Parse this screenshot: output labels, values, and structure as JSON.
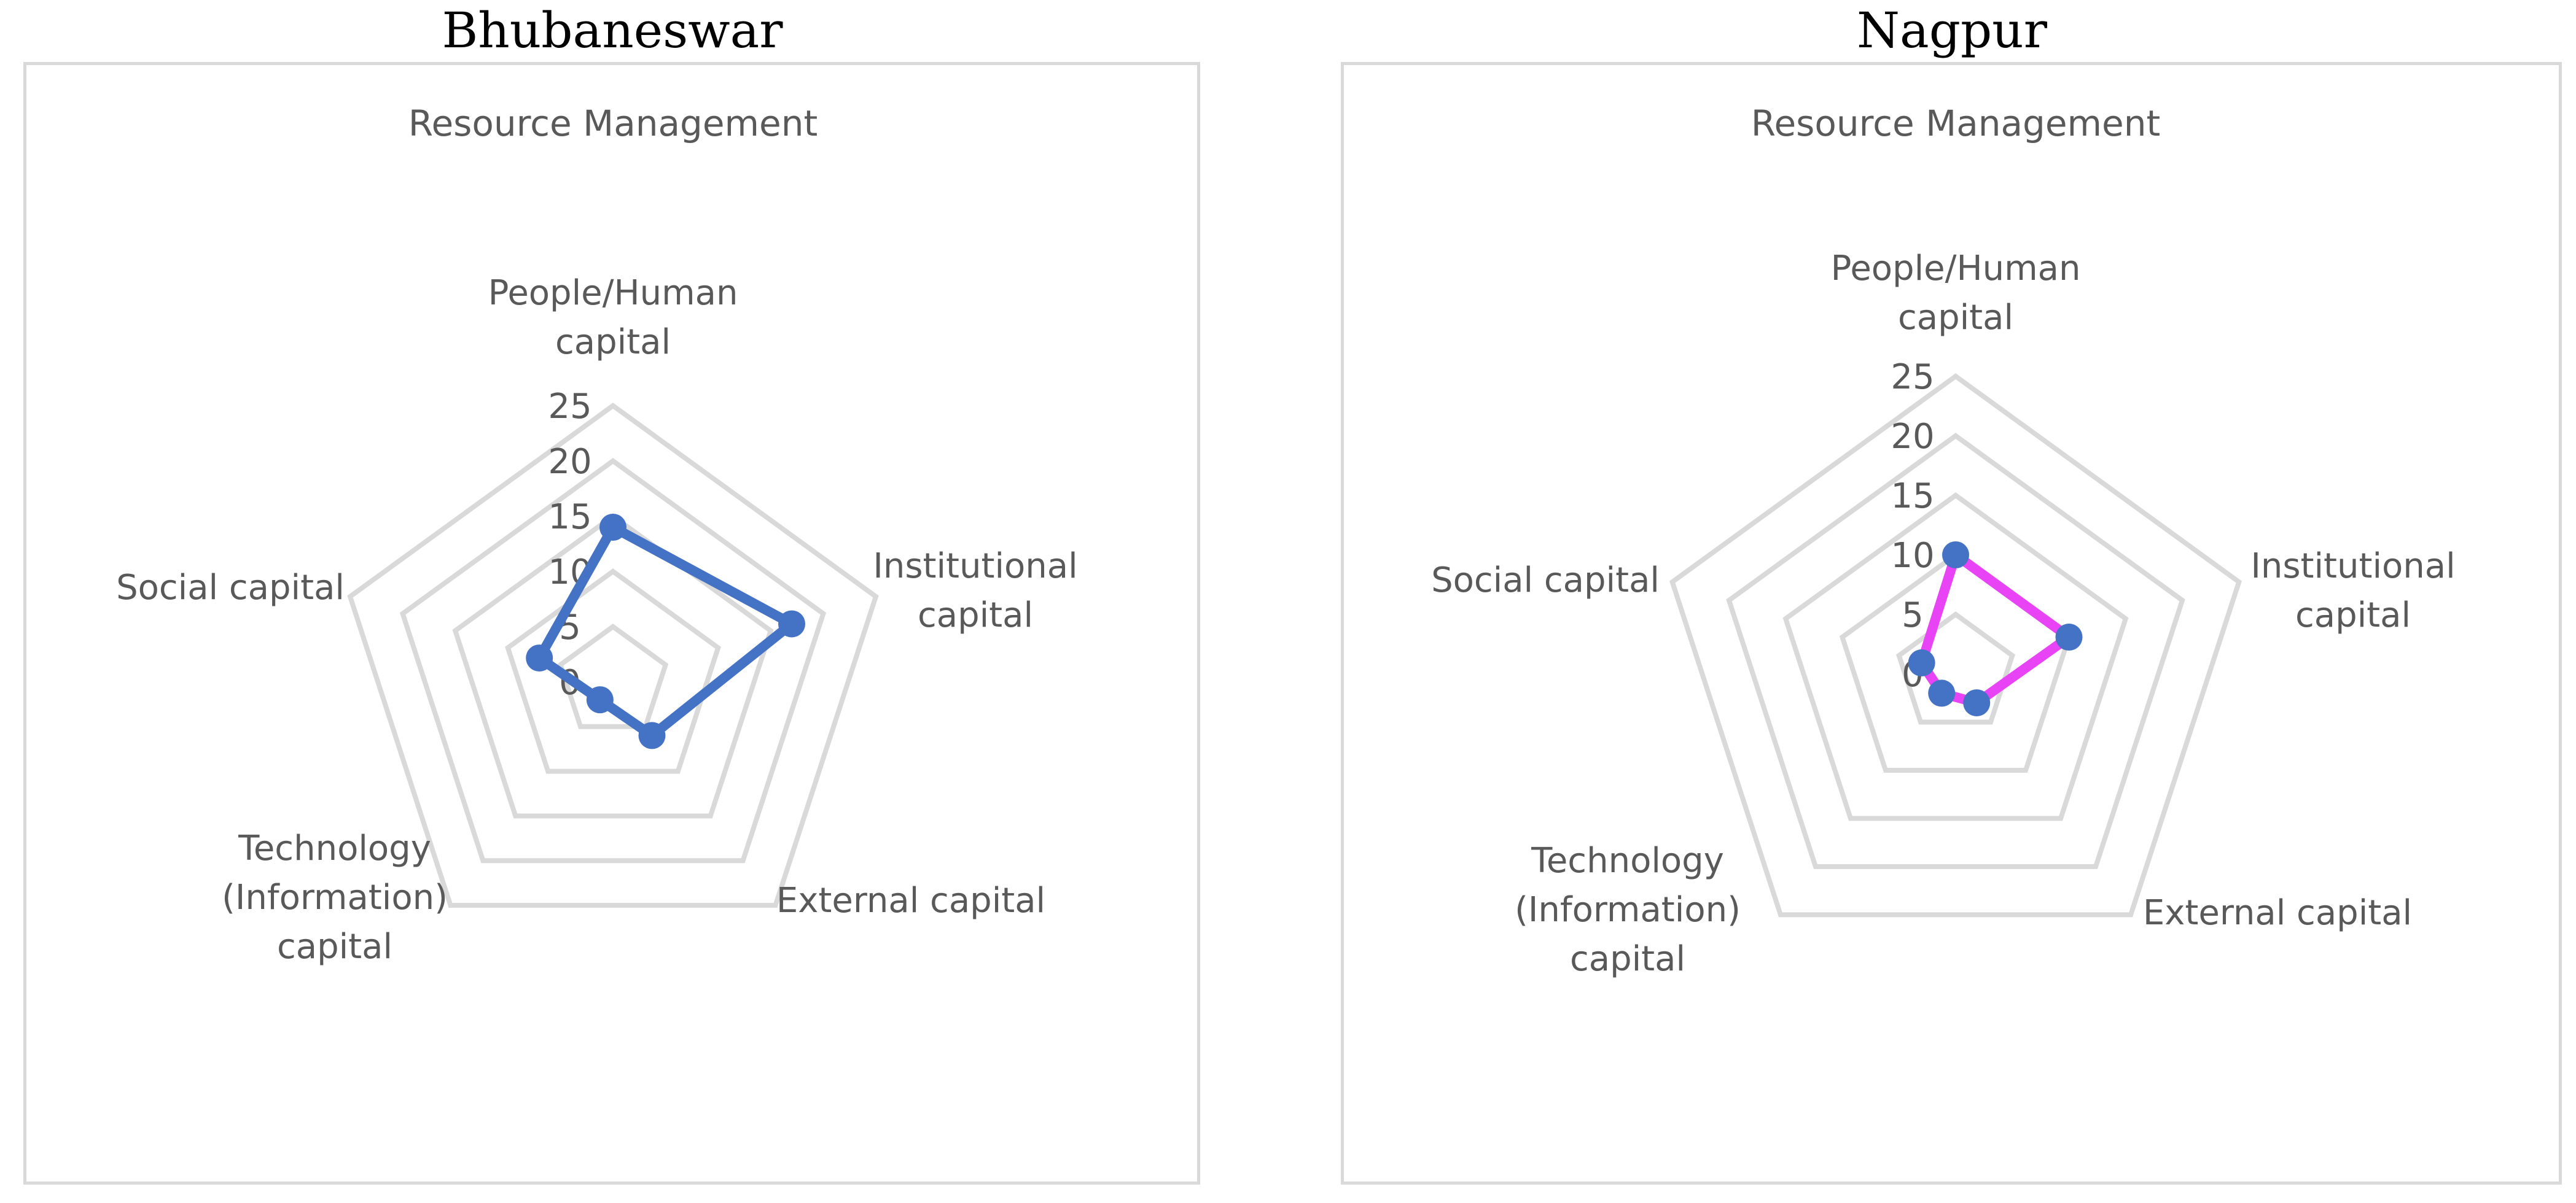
{
  "panels": [
    {
      "city": "Bhubaneswar"
    },
    {
      "city": "Nagpur"
    }
  ],
  "chart_data": [
    {
      "type": "radar",
      "title": "Resource Management",
      "categories": [
        "People/Human capital",
        "Institutional capital",
        "External capital",
        "Technology (Information) capital",
        "Social capital"
      ],
      "label_lines": [
        [
          "People/Human",
          "capital"
        ],
        [
          "Institutional",
          "capital"
        ],
        [
          "External capital"
        ],
        [
          "Technology",
          "(Information)",
          "capital"
        ],
        [
          "Social capital"
        ]
      ],
      "ticks": [
        "0",
        "5",
        "10",
        "15",
        "20",
        "25"
      ],
      "rmax": 25,
      "grid": true,
      "series": [
        {
          "values": [
            14,
            17,
            6,
            2,
            7
          ],
          "color": "#4472c4",
          "marker_color": "#4472c4"
        }
      ]
    },
    {
      "type": "radar",
      "title": "Resource Management",
      "categories": [
        "People/Human capital",
        "Institutional capital",
        "External capital",
        "Technology (Information) capital",
        "Social capital"
      ],
      "label_lines": [
        [
          "People/Human",
          "capital"
        ],
        [
          "Institutional",
          "capital"
        ],
        [
          "External capital"
        ],
        [
          "Technology",
          "(Information)",
          "capital"
        ],
        [
          "Social capital"
        ]
      ],
      "ticks": [
        "0",
        "5",
        "10",
        "15",
        "20",
        "25"
      ],
      "rmax": 25,
      "grid": true,
      "series": [
        {
          "values": [
            10,
            10,
            3,
            2,
            3
          ],
          "color": "#e844f5",
          "marker_color": "#4472c4"
        }
      ]
    }
  ]
}
